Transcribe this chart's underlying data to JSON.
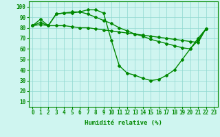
{
  "x": [
    0,
    1,
    2,
    3,
    4,
    5,
    6,
    7,
    8,
    9,
    10,
    11,
    12,
    13,
    14,
    15,
    16,
    17,
    18,
    19,
    20,
    21,
    22,
    23
  ],
  "line1": [
    82,
    85,
    82,
    93,
    94,
    95,
    95,
    97,
    97,
    94,
    68,
    44,
    37,
    35,
    32,
    30,
    31,
    35,
    40,
    50,
    60,
    70,
    79,
    null
  ],
  "line2": [
    82,
    88,
    82,
    93,
    94,
    94,
    95,
    93,
    90,
    87,
    84,
    80,
    77,
    74,
    72,
    69,
    67,
    65,
    63,
    61,
    60,
    68,
    79,
    null
  ],
  "line3": [
    82,
    83,
    82,
    82,
    82,
    81,
    80,
    80,
    79,
    78,
    77,
    76,
    75,
    74,
    73,
    72,
    71,
    70,
    69,
    68,
    67,
    66,
    79,
    null
  ],
  "bg_color": "#cff5f0",
  "grid_color": "#8fd8d0",
  "line_color": "#008800",
  "marker": "D",
  "markersize": 2,
  "linewidth": 1.0,
  "ylabel_vals": [
    10,
    20,
    30,
    40,
    50,
    60,
    70,
    80,
    90,
    100
  ],
  "ylim": [
    5,
    105
  ],
  "xlim": [
    -0.5,
    23.5
  ],
  "xlabel": "Humidité relative (%)",
  "xlabel_fontsize": 6.5,
  "tick_fontsize": 5.5,
  "title": ""
}
